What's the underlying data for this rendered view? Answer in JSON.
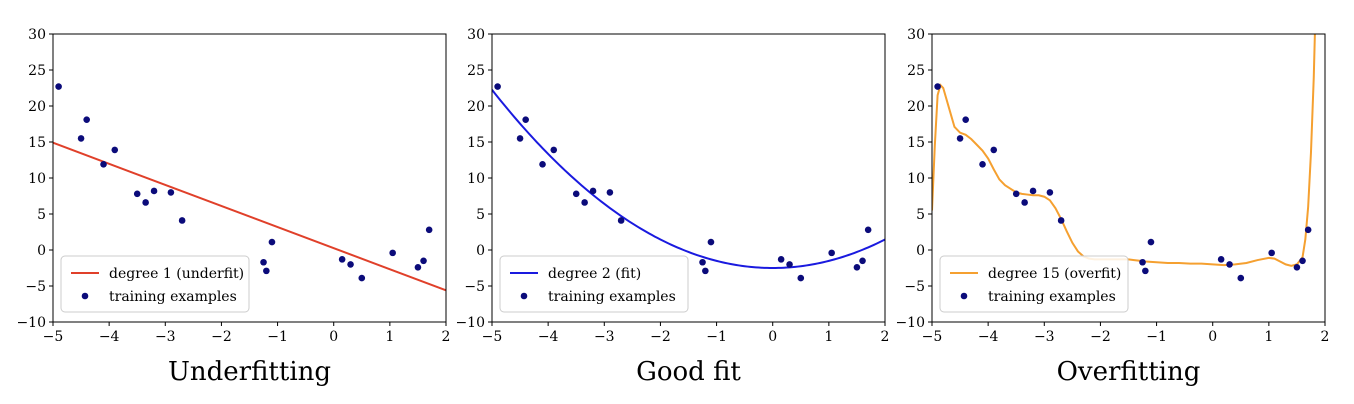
{
  "chart_data": [
    {
      "type": "scatter",
      "title": "Underfitting",
      "xlim": [
        -5,
        2
      ],
      "ylim": [
        -10,
        30
      ],
      "xticks": [
        -5,
        -4,
        -3,
        -2,
        -1,
        0,
        1,
        2
      ],
      "yticks": [
        -10,
        -5,
        0,
        5,
        10,
        15,
        20,
        25,
        30
      ],
      "xtick_labels": [
        "−5",
        "−4",
        "−3",
        "−2",
        "−1",
        "0",
        "1",
        "2"
      ],
      "ytick_labels": [
        "−10",
        "−5",
        "0",
        "5",
        "10",
        "15",
        "20",
        "25",
        "30"
      ],
      "legend": [
        "degree 1 (underfit)",
        "training examples"
      ],
      "legend_position": "lower-left",
      "fit_color": "#e0402a",
      "fit": {
        "kind": "line",
        "x": [
          -5,
          2
        ],
        "y": [
          14.9,
          -5.6
        ]
      },
      "points": [
        {
          "x": -4.9,
          "y": 22.7
        },
        {
          "x": -4.5,
          "y": 15.5
        },
        {
          "x": -4.4,
          "y": 18.1
        },
        {
          "x": -4.1,
          "y": 11.9
        },
        {
          "x": -3.9,
          "y": 13.9
        },
        {
          "x": -3.5,
          "y": 7.8
        },
        {
          "x": -3.35,
          "y": 6.6
        },
        {
          "x": -3.2,
          "y": 8.2
        },
        {
          "x": -2.9,
          "y": 8.0
        },
        {
          "x": -2.7,
          "y": 4.1
        },
        {
          "x": -1.25,
          "y": -1.7
        },
        {
          "x": -1.2,
          "y": -2.9
        },
        {
          "x": -1.1,
          "y": 1.1
        },
        {
          "x": 0.15,
          "y": -1.3
        },
        {
          "x": 0.3,
          "y": -2.0
        },
        {
          "x": 0.5,
          "y": -3.9
        },
        {
          "x": 1.05,
          "y": -0.4
        },
        {
          "x": 1.5,
          "y": -2.4
        },
        {
          "x": 1.6,
          "y": -1.5
        },
        {
          "x": 1.7,
          "y": 2.8
        }
      ]
    },
    {
      "type": "scatter",
      "title": "Good fit",
      "xlim": [
        -5,
        2
      ],
      "ylim": [
        -10,
        30
      ],
      "xticks": [
        -5,
        -4,
        -3,
        -2,
        -1,
        0,
        1,
        2
      ],
      "yticks": [
        -10,
        -5,
        0,
        5,
        10,
        15,
        20,
        25,
        30
      ],
      "xtick_labels": [
        "−5",
        "−4",
        "−3",
        "−2",
        "−1",
        "0",
        "1",
        "2"
      ],
      "ytick_labels": [
        "−10",
        "−5",
        "0",
        "5",
        "10",
        "15",
        "20",
        "25",
        "30"
      ],
      "legend": [
        "degree 2 (fit)",
        "training examples"
      ],
      "legend_position": "lower-left",
      "fit_color": "#1a1adf",
      "fit": {
        "kind": "poly",
        "coeffs": [
          -2.5,
          0.0,
          0.99
        ]
      },
      "points": [
        {
          "x": -4.9,
          "y": 22.7
        },
        {
          "x": -4.5,
          "y": 15.5
        },
        {
          "x": -4.4,
          "y": 18.1
        },
        {
          "x": -4.1,
          "y": 11.9
        },
        {
          "x": -3.9,
          "y": 13.9
        },
        {
          "x": -3.5,
          "y": 7.8
        },
        {
          "x": -3.35,
          "y": 6.6
        },
        {
          "x": -3.2,
          "y": 8.2
        },
        {
          "x": -2.9,
          "y": 8.0
        },
        {
          "x": -2.7,
          "y": 4.1
        },
        {
          "x": -1.25,
          "y": -1.7
        },
        {
          "x": -1.2,
          "y": -2.9
        },
        {
          "x": -1.1,
          "y": 1.1
        },
        {
          "x": 0.15,
          "y": -1.3
        },
        {
          "x": 0.3,
          "y": -2.0
        },
        {
          "x": 0.5,
          "y": -3.9
        },
        {
          "x": 1.05,
          "y": -0.4
        },
        {
          "x": 1.5,
          "y": -2.4
        },
        {
          "x": 1.6,
          "y": -1.5
        },
        {
          "x": 1.7,
          "y": 2.8
        }
      ]
    },
    {
      "type": "scatter",
      "title": "Overfitting",
      "xlim": [
        -5,
        2
      ],
      "ylim": [
        -10,
        30
      ],
      "xticks": [
        -5,
        -4,
        -3,
        -2,
        -1,
        0,
        1,
        2
      ],
      "yticks": [
        -10,
        -5,
        0,
        5,
        10,
        15,
        20,
        25,
        30
      ],
      "xtick_labels": [
        "−5",
        "−4",
        "−3",
        "−2",
        "−1",
        "0",
        "1",
        "2"
      ],
      "ytick_labels": [
        "−10",
        "−5",
        "0",
        "5",
        "10",
        "15",
        "20",
        "25",
        "30"
      ],
      "legend": [
        "degree 15 (overfit)",
        "training examples"
      ],
      "legend_position": "lower-left",
      "fit_color": "#f5a030",
      "fit": {
        "kind": "curve",
        "x": [
          -5.0,
          -4.95,
          -4.9,
          -4.85,
          -4.8,
          -4.7,
          -4.6,
          -4.5,
          -4.4,
          -4.3,
          -4.2,
          -4.1,
          -4.0,
          -3.9,
          -3.8,
          -3.7,
          -3.6,
          -3.5,
          -3.4,
          -3.3,
          -3.2,
          -3.1,
          -3.0,
          -2.9,
          -2.8,
          -2.7,
          -2.6,
          -2.5,
          -2.4,
          -2.3,
          -2.2,
          -2.1,
          -2.0,
          -1.9,
          -1.8,
          -1.7,
          -1.6,
          -1.5,
          -1.4,
          -1.3,
          -1.2,
          -1.0,
          -0.8,
          -0.6,
          -0.4,
          -0.2,
          0.0,
          0.2,
          0.4,
          0.6,
          0.8,
          1.0,
          1.1,
          1.2,
          1.3,
          1.4,
          1.5,
          1.6,
          1.65,
          1.7,
          1.75,
          1.8,
          1.82
        ],
        "y": [
          5.5,
          14.5,
          21.5,
          22.9,
          22.5,
          19.8,
          17.1,
          16.3,
          16.0,
          15.4,
          14.6,
          13.8,
          12.7,
          11.2,
          9.8,
          9.0,
          8.5,
          8.0,
          7.8,
          7.7,
          7.6,
          7.6,
          7.4,
          6.9,
          5.8,
          4.3,
          2.6,
          1.0,
          -0.2,
          -0.9,
          -1.2,
          -1.3,
          -1.3,
          -1.3,
          -1.3,
          -1.3,
          -1.3,
          -1.3,
          -1.4,
          -1.5,
          -1.6,
          -1.7,
          -1.8,
          -1.8,
          -1.9,
          -1.9,
          -2.0,
          -2.1,
          -2.0,
          -1.8,
          -1.4,
          -1.1,
          -1.2,
          -1.6,
          -2.0,
          -2.2,
          -2.0,
          -1.0,
          1.5,
          6.0,
          13.5,
          24.0,
          30.0
        ]
      },
      "points": [
        {
          "x": -4.9,
          "y": 22.7
        },
        {
          "x": -4.5,
          "y": 15.5
        },
        {
          "x": -4.4,
          "y": 18.1
        },
        {
          "x": -4.1,
          "y": 11.9
        },
        {
          "x": -3.9,
          "y": 13.9
        },
        {
          "x": -3.5,
          "y": 7.8
        },
        {
          "x": -3.35,
          "y": 6.6
        },
        {
          "x": -3.2,
          "y": 8.2
        },
        {
          "x": -2.9,
          "y": 8.0
        },
        {
          "x": -2.7,
          "y": 4.1
        },
        {
          "x": -1.25,
          "y": -1.7
        },
        {
          "x": -1.2,
          "y": -2.9
        },
        {
          "x": -1.1,
          "y": 1.1
        },
        {
          "x": 0.15,
          "y": -1.3
        },
        {
          "x": 0.3,
          "y": -2.0
        },
        {
          "x": 0.5,
          "y": -3.9
        },
        {
          "x": 1.05,
          "y": -0.4
        },
        {
          "x": 1.5,
          "y": -2.4
        },
        {
          "x": 1.6,
          "y": -1.5
        },
        {
          "x": 1.7,
          "y": 2.8
        }
      ]
    }
  ],
  "point_color": "#0b0b7a"
}
